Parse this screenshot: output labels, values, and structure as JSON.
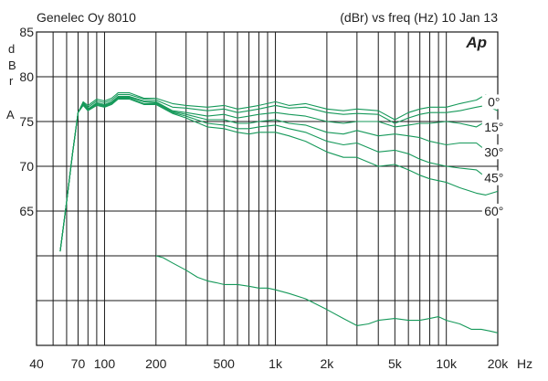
{
  "header": {
    "left": "Genelec Oy 8010",
    "right": "(dBr) vs freq (Hz) 10 Jan 13",
    "logo": "Ap"
  },
  "ylabel_letters": [
    "d",
    "B",
    "r",
    "A"
  ],
  "xunit": "Hz",
  "colors": {
    "trace": "#16995a",
    "grid": "#1a1a1a"
  },
  "chart_data": {
    "type": "line",
    "title": "",
    "xlabel": "Hz",
    "ylabel": "dBrA",
    "xscale": "log",
    "xlim": [
      40,
      20000
    ],
    "ylim": [
      50,
      85
    ],
    "grid": true,
    "x_ticks": [
      {
        "v": 40,
        "label": "40"
      },
      {
        "v": 70,
        "label": "70"
      },
      {
        "v": 100,
        "label": "100"
      },
      {
        "v": 200,
        "label": "200"
      },
      {
        "v": 500,
        "label": "500"
      },
      {
        "v": 1000,
        "label": "1k"
      },
      {
        "v": 2000,
        "label": "2k"
      },
      {
        "v": 5000,
        "label": "5k"
      },
      {
        "v": 10000,
        "label": "10k"
      },
      {
        "v": 20000,
        "label": "20k"
      }
    ],
    "y_ticks": [
      {
        "v": 85,
        "label": "85"
      },
      {
        "v": 80,
        "label": "80"
      },
      {
        "v": 75,
        "label": "75"
      },
      {
        "v": 70,
        "label": "70"
      },
      {
        "v": 65,
        "label": "65"
      }
    ],
    "y_extra_gridlines": [
      60,
      55,
      50
    ],
    "minor_x": [
      50,
      60,
      80,
      90,
      300,
      400,
      600,
      700,
      800,
      900,
      3000,
      4000,
      6000,
      7000,
      8000,
      9000
    ],
    "series": [
      {
        "name": "0°",
        "label_at": [
          19000,
          76.9
        ],
        "values": [
          [
            55,
            60.5
          ],
          [
            60,
            66
          ],
          [
            65,
            71.5
          ],
          [
            70,
            76
          ],
          [
            75,
            77.2
          ],
          [
            80,
            76.8
          ],
          [
            90,
            77.5
          ],
          [
            100,
            77.3
          ],
          [
            110,
            77.6
          ],
          [
            120,
            78.2
          ],
          [
            140,
            78.2
          ],
          [
            170,
            77.6
          ],
          [
            200,
            77.6
          ],
          [
            250,
            77
          ],
          [
            300,
            76.8
          ],
          [
            400,
            76.6
          ],
          [
            500,
            76.8
          ],
          [
            600,
            76.4
          ],
          [
            700,
            76.6
          ],
          [
            800,
            76.8
          ],
          [
            1000,
            77.2
          ],
          [
            1200,
            76.8
          ],
          [
            1500,
            77
          ],
          [
            2000,
            76.4
          ],
          [
            2500,
            76.2
          ],
          [
            3000,
            76.4
          ],
          [
            4000,
            76.2
          ],
          [
            5000,
            75.2
          ],
          [
            6000,
            76
          ],
          [
            7000,
            76.4
          ],
          [
            8000,
            76.6
          ],
          [
            10000,
            76.6
          ],
          [
            12000,
            77
          ],
          [
            15000,
            77.4
          ],
          [
            17000,
            78
          ],
          [
            20000,
            77.2
          ]
        ]
      },
      {
        "name": "",
        "values": [
          [
            55,
            60.5
          ],
          [
            60,
            66
          ],
          [
            65,
            71.5
          ],
          [
            70,
            76
          ],
          [
            75,
            77.1
          ],
          [
            80,
            76.6
          ],
          [
            90,
            77.3
          ],
          [
            100,
            77.1
          ],
          [
            110,
            77.4
          ],
          [
            120,
            78.0
          ],
          [
            140,
            78.0
          ],
          [
            170,
            77.5
          ],
          [
            200,
            77.4
          ],
          [
            250,
            76.6
          ],
          [
            300,
            76.5
          ],
          [
            400,
            76.2
          ],
          [
            500,
            76.4
          ],
          [
            600,
            76
          ],
          [
            700,
            76.2
          ],
          [
            800,
            76.4
          ],
          [
            1000,
            76.8
          ],
          [
            1200,
            76.5
          ],
          [
            1500,
            76.6
          ],
          [
            2000,
            76.0
          ],
          [
            2500,
            75.8
          ],
          [
            3000,
            75.9
          ],
          [
            4000,
            75.8
          ],
          [
            5000,
            74.8
          ],
          [
            6000,
            75.4
          ],
          [
            7000,
            75.8
          ],
          [
            8000,
            76
          ],
          [
            10000,
            76
          ],
          [
            12000,
            76.2
          ],
          [
            15000,
            76.6
          ],
          [
            17000,
            76.8
          ],
          [
            20000,
            76.2
          ]
        ]
      },
      {
        "name": "15°",
        "label_at": [
          19000,
          74.1
        ],
        "values": [
          [
            55,
            60.5
          ],
          [
            60,
            66
          ],
          [
            65,
            71.5
          ],
          [
            70,
            76
          ],
          [
            75,
            77.0
          ],
          [
            80,
            76.4
          ],
          [
            90,
            77.1
          ],
          [
            100,
            76.9
          ],
          [
            110,
            77.2
          ],
          [
            120,
            77.8
          ],
          [
            140,
            77.8
          ],
          [
            170,
            77.3
          ],
          [
            200,
            77.2
          ],
          [
            250,
            76.2
          ],
          [
            300,
            76
          ],
          [
            400,
            75.6
          ],
          [
            500,
            75.8
          ],
          [
            600,
            75.4
          ],
          [
            700,
            75.6
          ],
          [
            800,
            75.8
          ],
          [
            1000,
            76
          ],
          [
            1200,
            75.8
          ],
          [
            1500,
            75.6
          ],
          [
            2000,
            75
          ],
          [
            2500,
            74.8
          ],
          [
            3000,
            75
          ],
          [
            4000,
            75
          ],
          [
            5000,
            74.4
          ],
          [
            6000,
            74.6
          ],
          [
            7000,
            74.8
          ],
          [
            8000,
            74.8
          ],
          [
            10000,
            75
          ],
          [
            12000,
            74.8
          ],
          [
            15000,
            74.4
          ],
          [
            17000,
            75
          ],
          [
            20000,
            74.6
          ]
        ]
      },
      {
        "name": "",
        "values": [
          [
            55,
            60.5
          ],
          [
            60,
            66
          ],
          [
            65,
            71.5
          ],
          [
            70,
            76
          ],
          [
            75,
            77.0
          ],
          [
            80,
            76.4
          ],
          [
            90,
            77.0
          ],
          [
            100,
            76.8
          ],
          [
            110,
            77.1
          ],
          [
            120,
            77.7
          ],
          [
            140,
            77.7
          ],
          [
            170,
            77.2
          ],
          [
            200,
            77.1
          ],
          [
            250,
            76.1
          ],
          [
            300,
            75.8
          ],
          [
            400,
            75.2
          ],
          [
            500,
            75.2
          ],
          [
            600,
            74.8
          ],
          [
            700,
            74.8
          ],
          [
            800,
            75
          ],
          [
            1000,
            75.2
          ],
          [
            1200,
            74.8
          ],
          [
            1500,
            74.6
          ],
          [
            2000,
            73.8
          ],
          [
            2500,
            73.6
          ],
          [
            3000,
            74
          ],
          [
            4000,
            73.4
          ],
          [
            5000,
            73.6
          ],
          [
            6000,
            73.4
          ],
          [
            7000,
            73.2
          ],
          [
            8000,
            72.8
          ],
          [
            10000,
            72.4
          ],
          [
            12000,
            72.6
          ],
          [
            15000,
            72.6
          ],
          [
            17000,
            71.8
          ],
          [
            20000,
            72.2
          ]
        ]
      },
      {
        "name": "30°",
        "label_at": [
          19000,
          71.3
        ],
        "values": [
          [
            55,
            60.5
          ],
          [
            60,
            66
          ],
          [
            65,
            71.5
          ],
          [
            70,
            76
          ],
          [
            75,
            76.9
          ],
          [
            80,
            76.3
          ],
          [
            90,
            76.9
          ],
          [
            100,
            76.7
          ],
          [
            110,
            77.0
          ],
          [
            120,
            77.6
          ],
          [
            140,
            77.6
          ],
          [
            170,
            77.0
          ],
          [
            200,
            77.0
          ],
          [
            250,
            76
          ],
          [
            300,
            75.6
          ],
          [
            400,
            74.8
          ],
          [
            500,
            74.6
          ],
          [
            600,
            74.2
          ],
          [
            700,
            74.2
          ],
          [
            800,
            74.4
          ],
          [
            1000,
            74.6
          ],
          [
            1200,
            74.2
          ],
          [
            1500,
            73.8
          ],
          [
            2000,
            72.8
          ],
          [
            2500,
            72.4
          ],
          [
            3000,
            72.6
          ],
          [
            4000,
            71.6
          ],
          [
            5000,
            71.8
          ],
          [
            6000,
            71.4
          ],
          [
            7000,
            70.8
          ],
          [
            8000,
            70.4
          ],
          [
            10000,
            70
          ],
          [
            12000,
            69.8
          ],
          [
            15000,
            69.6
          ],
          [
            17000,
            68.8
          ],
          [
            20000,
            69.2
          ]
        ]
      },
      {
        "name": "",
        "values": [
          [
            55,
            60.5
          ],
          [
            60,
            66
          ],
          [
            65,
            71.5
          ],
          [
            70,
            76
          ],
          [
            75,
            76.8
          ],
          [
            80,
            76.2
          ],
          [
            90,
            76.8
          ],
          [
            100,
            76.6
          ],
          [
            110,
            76.9
          ],
          [
            120,
            77.5
          ],
          [
            140,
            77.5
          ],
          [
            170,
            76.9
          ],
          [
            200,
            76.9
          ],
          [
            250,
            75.9
          ],
          [
            300,
            75.4
          ],
          [
            400,
            74.4
          ],
          [
            500,
            74.2
          ],
          [
            600,
            73.8
          ],
          [
            700,
            73.6
          ],
          [
            800,
            73.8
          ],
          [
            1000,
            73.8
          ],
          [
            1200,
            73.4
          ],
          [
            1500,
            72.8
          ],
          [
            2000,
            71.6
          ],
          [
            2500,
            71
          ],
          [
            3000,
            71
          ],
          [
            4000,
            70
          ],
          [
            5000,
            70.2
          ],
          [
            6000,
            69.6
          ],
          [
            7000,
            69
          ],
          [
            8000,
            68.6
          ],
          [
            10000,
            68.2
          ],
          [
            12000,
            67.6
          ],
          [
            15000,
            67
          ],
          [
            17000,
            66.8
          ],
          [
            20000,
            67.2
          ]
        ]
      },
      {
        "name": "45°",
        "label_at": [
          19000,
          68.4
        ],
        "values": []
      },
      {
        "name": "60°",
        "label_at": [
          19000,
          64.7
        ],
        "values": []
      },
      {
        "name": "",
        "role": "power-response",
        "values": [
          [
            200,
            60
          ],
          [
            220,
            59.8
          ],
          [
            250,
            59.2
          ],
          [
            300,
            58.4
          ],
          [
            350,
            57.6
          ],
          [
            400,
            57.2
          ],
          [
            450,
            57
          ],
          [
            500,
            56.8
          ],
          [
            600,
            56.8
          ],
          [
            700,
            56.6
          ],
          [
            800,
            56.4
          ],
          [
            900,
            56.4
          ],
          [
            1000,
            56.2
          ],
          [
            1200,
            55.8
          ],
          [
            1500,
            55.2
          ],
          [
            2000,
            54
          ],
          [
            2500,
            53
          ],
          [
            3000,
            52.2
          ],
          [
            3500,
            52.4
          ],
          [
            4000,
            52.8
          ],
          [
            5000,
            53
          ],
          [
            6000,
            52.8
          ],
          [
            7000,
            52.8
          ],
          [
            8000,
            53
          ],
          [
            9000,
            53.2
          ],
          [
            10000,
            52.8
          ],
          [
            12000,
            52.4
          ],
          [
            14000,
            51.8
          ],
          [
            16000,
            51.8
          ],
          [
            18000,
            51.6
          ],
          [
            20000,
            51.4
          ]
        ]
      }
    ]
  }
}
